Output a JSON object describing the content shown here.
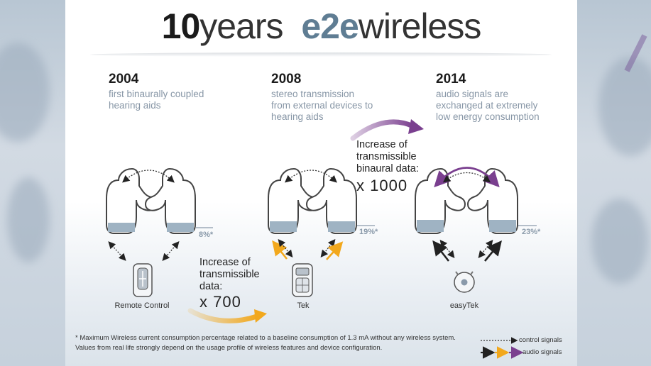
{
  "title": {
    "number": "10",
    "word": "years",
    "brand": "e2e",
    "suffix": "wireless"
  },
  "columns": [
    {
      "year": "2004",
      "desc": "first binaurally coupled\nhearing aids",
      "device": "Remote Control",
      "percent": "8%*"
    },
    {
      "year": "2008",
      "desc": "stereo transmission\nfrom external devices to\nhearing aids",
      "device": "Tek",
      "percent": "19%*"
    },
    {
      "year": "2014",
      "desc": "audio signals are\nexchanged at extremely\nlow energy consumption",
      "device": "easyTek",
      "percent": "23%*"
    }
  ],
  "increases": [
    {
      "text": "Increase of\ntransmissible\ndata:",
      "multiplier": "x 700"
    },
    {
      "text": "Increase of\ntransmissible\nbinaural data:",
      "multiplier": "x 1000"
    }
  ],
  "footnote": {
    "marker": "*",
    "text": "Maximum Wireless current consumption percentage related to a baseline consumption of 1.3 mA without any wireless system. Values from real life strongly depend on the usage profile of wireless features and device configuration."
  },
  "legend": {
    "control": "control signals",
    "audio": "audio signals"
  },
  "colors": {
    "brand": "#5f7d93",
    "orange_arrow": "#f2a81d",
    "purple_arrow": "#7a3f8f",
    "battery_fill": "#9fb3c3"
  }
}
